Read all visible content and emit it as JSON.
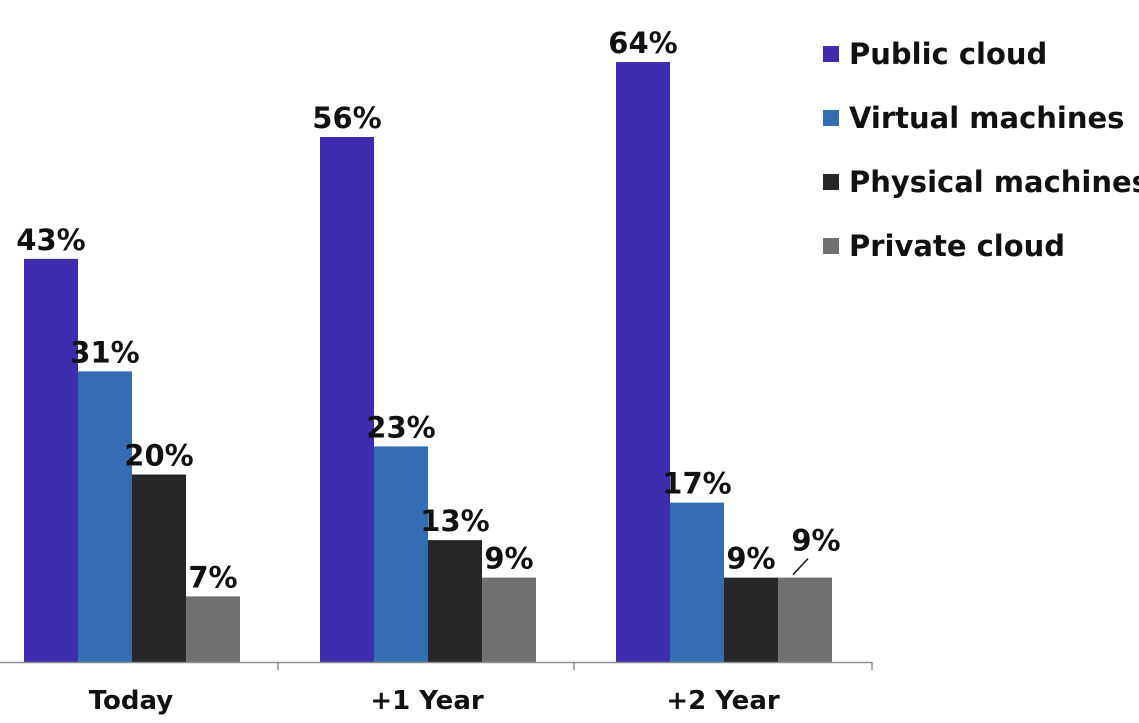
{
  "chart_data": {
    "type": "bar",
    "categories": [
      "Today",
      "+1 Year",
      "+2 Year"
    ],
    "series": [
      {
        "name": "Public cloud",
        "color": "#3f2db0",
        "values": [
          43,
          56,
          64
        ],
        "labels": [
          "43%",
          "56%",
          "64%"
        ]
      },
      {
        "name": "Virtual machines",
        "color": "#356db5",
        "values": [
          31,
          23,
          17
        ],
        "labels": [
          "31%",
          "23%",
          "17%"
        ]
      },
      {
        "name": "Physical machines",
        "color": "#262626",
        "values": [
          20,
          13,
          9
        ],
        "labels": [
          "20%",
          "13%",
          "9%"
        ]
      },
      {
        "name": "Private cloud",
        "color": "#707070",
        "values": [
          7,
          9,
          9
        ],
        "labels": [
          "7%",
          "9%",
          "9%"
        ]
      }
    ],
    "ylim": [
      0,
      64
    ],
    "value_unit": "%",
    "grid": false,
    "legend_position": "top-right",
    "title": "",
    "xlabel": "",
    "ylabel": ""
  }
}
